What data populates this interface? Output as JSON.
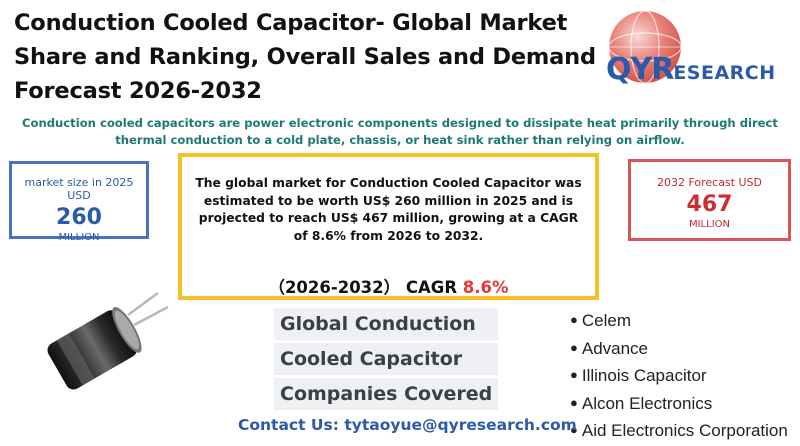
{
  "header": {
    "title": "Conduction Cooled Capacitor- Global Market Share and Ranking, Overall Sales and Demand Forecast 2026-2032"
  },
  "logo": {
    "brand_initial": "QYR",
    "brand_rest": "ESEARCH",
    "colors": {
      "blue": "#2a5aa8",
      "red": "#e03a2a"
    }
  },
  "description": "Conduction cooled capacitors are power electronic components designed to dissipate heat primarily through direct thermal conduction to a cold plate, chassis, or heat sink rather than relying on airflow.",
  "market_size": {
    "label": "market size in 2025 USD",
    "value": "260",
    "unit": "MILLION"
  },
  "forecast": {
    "label": "2032 Forecast  USD",
    "value": "467",
    "unit": "MILLION"
  },
  "summary": {
    "text": "The global market for Conduction Cooled Capacitor was estimated to be worth US$ 260 million in 2025 and is projected to reach US$ 467 million, growing at a CAGR of 8.6% from 2026 to 2032.",
    "cagr_prefix": "（2026-2032） CAGR ",
    "cagr_value": "8.6%"
  },
  "companies": {
    "heading_lines": [
      "Global Conduction",
      "Cooled Capacitor",
      "Companies Covered"
    ],
    "items": [
      "Celem",
      "Advance",
      "Illinois Capacitor",
      "Alcon Electronics",
      "Aid Electronics Corporation"
    ]
  },
  "contact": "Contact Us: tytaoyue@qyresearch.com",
  "accent_colors": {
    "teal_text": "#1d7a6e",
    "blue_box": "#4a72c4",
    "red_box": "#d9545a",
    "yellow_box": "#f6c026",
    "cagr_red": "#e53935"
  }
}
